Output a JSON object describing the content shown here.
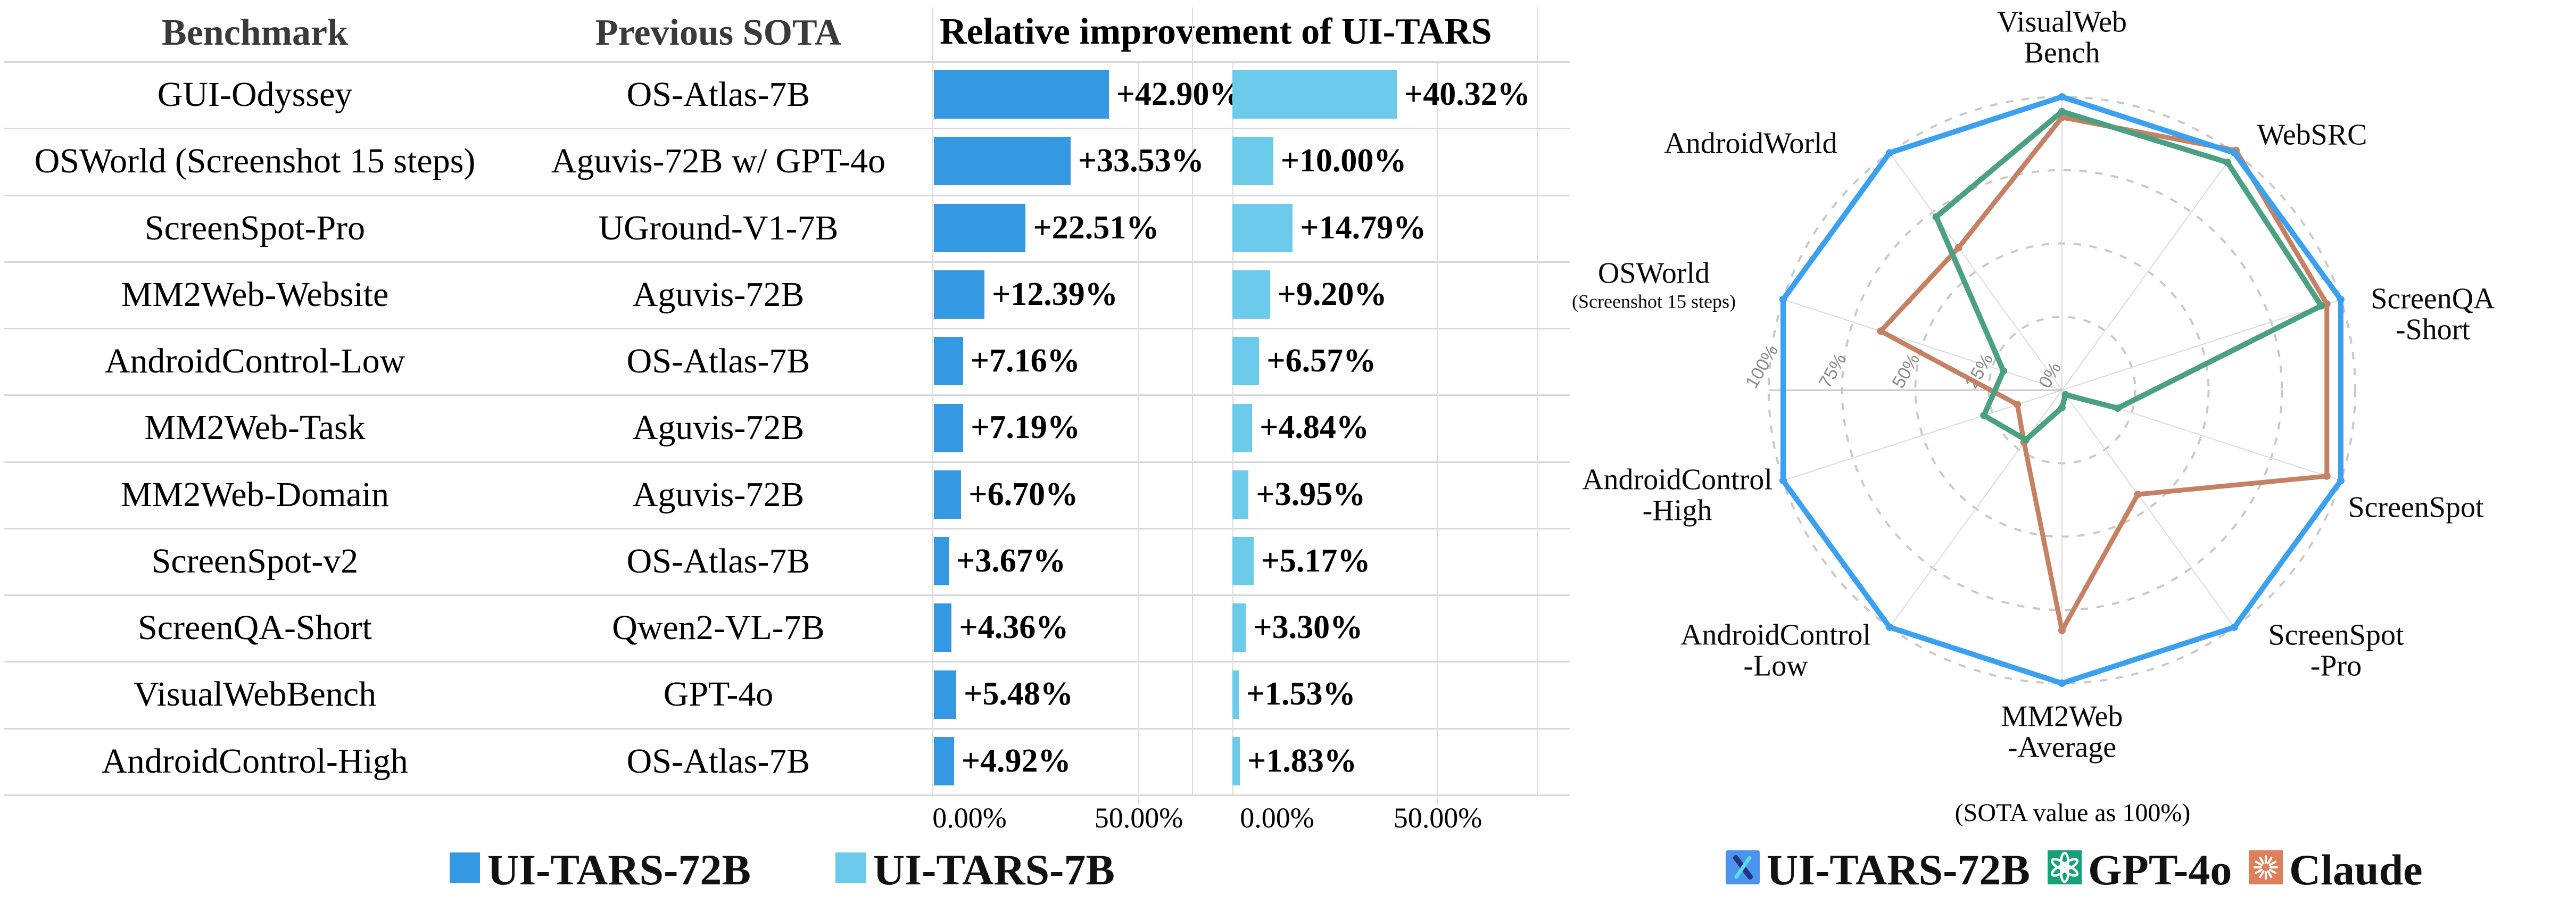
{
  "figure": {
    "table": {
      "col_benchmark": "Benchmark",
      "col_previous_sota": "Previous SOTA",
      "col_improvement": "Relative improvement of UI-TARS",
      "axis_tick_zero": "0.00%",
      "axis_tick_fifty": "50.00%"
    },
    "bar_legend": [
      {
        "label": "UI-TARS-72B",
        "color": "#3498E3"
      },
      {
        "label": "UI-TARS-7B",
        "color": "#6CCBEA"
      }
    ],
    "radar_legend": [
      {
        "label": "UI-TARS-72B",
        "color": "#4D94F0",
        "icon": "ui-tars-logo"
      },
      {
        "label": "GPT-4o",
        "color": "#17A077",
        "icon": "openai-logo"
      },
      {
        "label": "Claude",
        "color": "#DC7F5B",
        "icon": "claude-logo"
      }
    ],
    "radar_caption": "(SOTA value as 100%)"
  },
  "chart_data": [
    {
      "type": "bar",
      "orientation": "horizontal",
      "title": "Relative improvement of UI-TARS",
      "categories": [
        "GUI-Odyssey",
        "OSWorld (Screenshot 15 steps)",
        "ScreenSpot-Pro",
        "MM2Web-Website",
        "AndroidControl-Low",
        "MM2Web-Task",
        "MM2Web-Domain",
        "ScreenSpot-v2",
        "ScreenQA-Short",
        "VisualWebBench",
        "AndroidControl-High"
      ],
      "previous_sota": [
        "OS-Atlas-7B",
        "Aguvis-72B w/ GPT-4o",
        "UGround-V1-7B",
        "Aguvis-72B",
        "OS-Atlas-7B",
        "Aguvis-72B",
        "Aguvis-72B",
        "OS-Atlas-7B",
        "Qwen2-VL-7B",
        "GPT-4o",
        "OS-Atlas-7B"
      ],
      "series": [
        {
          "name": "UI-TARS-72B",
          "color": "#3498E3",
          "values": [
            42.9,
            33.53,
            22.51,
            12.39,
            7.16,
            7.19,
            6.7,
            3.67,
            4.36,
            5.48,
            4.92
          ],
          "labels": [
            "+42.90%",
            "+33.53%",
            "+22.51%",
            "+12.39%",
            "+7.16%",
            "+7.19%",
            "+6.70%",
            "+3.67%",
            "+4.36%",
            "+5.48%",
            "+4.92%"
          ]
        },
        {
          "name": "UI-TARS-7B",
          "color": "#6CCBEA",
          "values": [
            40.32,
            10.0,
            14.79,
            9.2,
            6.57,
            4.84,
            3.95,
            5.17,
            3.3,
            1.53,
            1.83
          ],
          "labels": [
            "+40.32%",
            "+10.00%",
            "+14.79%",
            "+9.20%",
            "+6.57%",
            "+4.84%",
            "+3.95%",
            "+5.17%",
            "+3.30%",
            "+1.53%",
            "+1.83%"
          ]
        }
      ],
      "xlim": [
        0,
        72.5
      ],
      "x_ticks": [
        {
          "value": 0,
          "label": "0.00%"
        },
        {
          "value": 50,
          "label": "50.00%"
        }
      ],
      "grid": true,
      "legend_position": "bottom"
    },
    {
      "type": "radar",
      "categories": [
        "VisualWeb\nBench",
        "WebSRC",
        "ScreenQA\n-Short",
        "ScreenSpot",
        "ScreenSpot\n-Pro",
        "MM2Web\n-Average",
        "AndroidControl\n-Low",
        "AndroidControl\n-High",
        "OSWorld\n(Screenshot 15 steps)",
        "AndroidWorld"
      ],
      "series": [
        {
          "name": "UI-TARS-72B",
          "color": "#3BA0F0",
          "values": [
            100,
            100,
            100,
            100,
            100,
            100,
            100,
            100,
            100,
            100
          ]
        },
        {
          "name": "GPT-4o",
          "color": "#4BA081",
          "values": [
            95,
            96,
            93,
            20,
            2,
            6,
            21,
            28,
            21,
            73
          ]
        },
        {
          "name": "Claude",
          "color": "#C58164",
          "values": [
            93,
            101,
            95,
            95,
            44,
            82,
            22,
            16,
            65,
            60
          ]
        }
      ],
      "r_ticks": [
        "100%",
        "75%",
        "50%",
        "25%",
        "0%"
      ],
      "r_tick_values": [
        100,
        75,
        50,
        25,
        0
      ],
      "rlim": [
        0,
        100
      ],
      "grid": true,
      "caption": "(SOTA value as 100%)",
      "legend_position": "bottom"
    }
  ]
}
